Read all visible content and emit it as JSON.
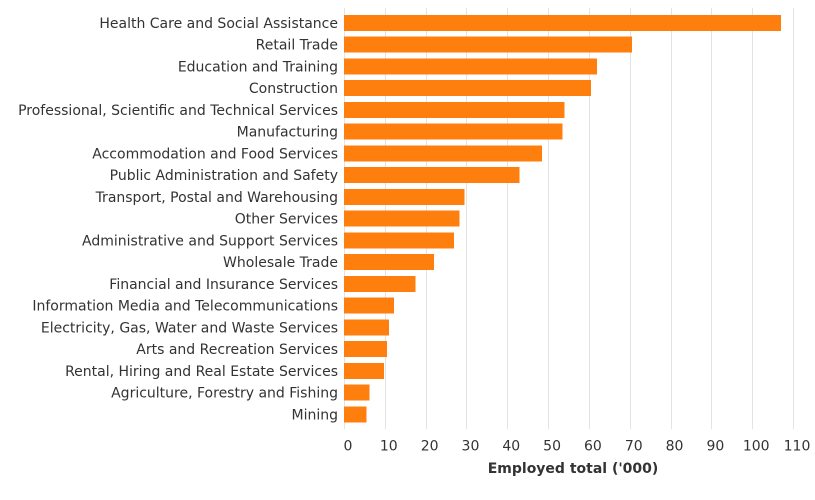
{
  "chart_data": {
    "type": "bar",
    "orientation": "horizontal",
    "categories": [
      "Health Care and Social Assistance",
      "Retail Trade",
      "Education and Training",
      "Construction",
      "Professional, Scientific and Technical Services",
      "Manufacturing",
      "Accommodation and Food Services",
      "Public Administration and Safety",
      "Transport, Postal and Warehousing",
      "Other Services",
      "Administrative and Support Services",
      "Wholesale Trade",
      "Financial and Insurance Services",
      "Information Media and Telecommunications",
      "Electricity, Gas, Water and Waste Services",
      "Arts and Recreation Services",
      "Rental, Hiring and Real Estate Services",
      "Agriculture, Forestry and Fishing",
      "Mining"
    ],
    "values": [
      107,
      70.5,
      62,
      60.5,
      54,
      53.5,
      48.5,
      43,
      29.5,
      28.3,
      27,
      22,
      17.5,
      12.3,
      11,
      10.5,
      9.8,
      6.2,
      5.5
    ],
    "xlabel": "Employed total ('000)",
    "xticks": [
      0,
      10,
      20,
      30,
      40,
      50,
      60,
      70,
      80,
      90,
      100,
      110
    ],
    "xlim": [
      0,
      110
    ],
    "grid": "vertical",
    "bar_color": "#ff7f0e"
  }
}
